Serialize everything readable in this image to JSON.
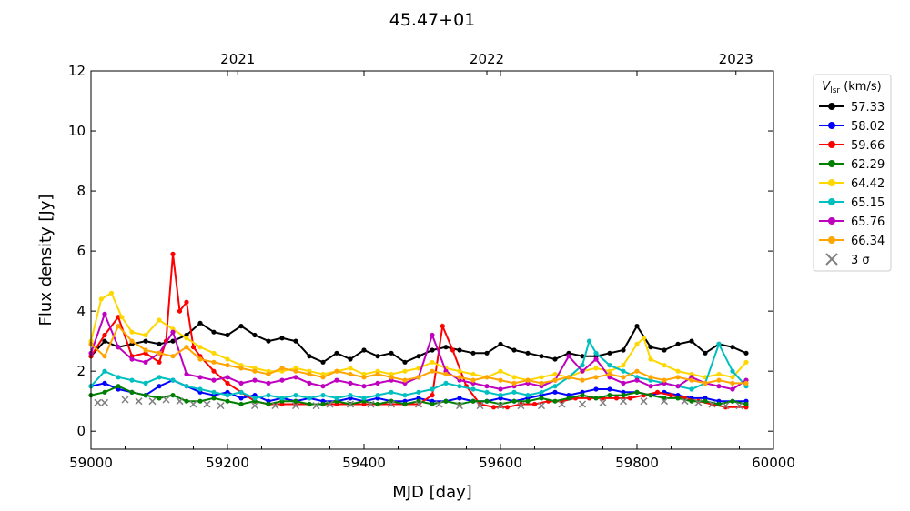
{
  "chart_data": {
    "type": "line",
    "title": "45.47+01",
    "xlabel": "MJD [day]",
    "ylabel": "Flux density [Jy]",
    "xlim": [
      59000,
      60000
    ],
    "ylim": [
      -0.6,
      12
    ],
    "xticks": [
      59000,
      59200,
      59400,
      59600,
      59800,
      60000
    ],
    "yticks": [
      0,
      2,
      4,
      6,
      8,
      10,
      12
    ],
    "top_axis": [
      {
        "label": "2021",
        "x": 59215
      },
      {
        "label": "2022",
        "x": 59580
      },
      {
        "label": "2023",
        "x": 59945
      }
    ],
    "legend": {
      "title_main": "V",
      "title_sub": "lsr",
      "title_unit": " (km/s)",
      "placement": "outside-right",
      "entries": [
        "57.33",
        "58.02",
        "59.66",
        "62.29",
        "64.42",
        "65.15",
        "65.76",
        "66.34"
      ],
      "sigma_label": "3 σ"
    },
    "series": [
      {
        "name": "57.33",
        "color": "#000000",
        "x": [
          59000,
          59020,
          59040,
          59060,
          59080,
          59100,
          59120,
          59140,
          59160,
          59180,
          59200,
          59220,
          59240,
          59260,
          59280,
          59300,
          59320,
          59340,
          59360,
          59380,
          59400,
          59420,
          59440,
          59460,
          59480,
          59500,
          59520,
          59540,
          59560,
          59580,
          59600,
          59620,
          59640,
          59660,
          59680,
          59700,
          59720,
          59740,
          59760,
          59780,
          59800,
          59820,
          59840,
          59860,
          59880,
          59900,
          59920,
          59940,
          59960
        ],
        "y": [
          2.5,
          3.0,
          2.8,
          2.9,
          3.0,
          2.9,
          3.0,
          3.2,
          3.6,
          3.3,
          3.2,
          3.5,
          3.2,
          3.0,
          3.1,
          3.0,
          2.5,
          2.3,
          2.6,
          2.4,
          2.7,
          2.5,
          2.6,
          2.3,
          2.5,
          2.7,
          2.8,
          2.7,
          2.6,
          2.6,
          2.9,
          2.7,
          2.6,
          2.5,
          2.4,
          2.6,
          2.5,
          2.5,
          2.6,
          2.7,
          3.5,
          2.8,
          2.7,
          2.9,
          3.0,
          2.6,
          2.9,
          2.8,
          2.6
        ]
      },
      {
        "name": "58.02",
        "color": "#0000ff",
        "x": [
          59000,
          59020,
          59040,
          59060,
          59080,
          59100,
          59120,
          59140,
          59160,
          59180,
          59200,
          59220,
          59240,
          59260,
          59280,
          59300,
          59320,
          59340,
          59360,
          59380,
          59400,
          59420,
          59440,
          59460,
          59480,
          59500,
          59520,
          59540,
          59560,
          59580,
          59600,
          59620,
          59640,
          59660,
          59680,
          59700,
          59720,
          59740,
          59760,
          59780,
          59800,
          59820,
          59840,
          59860,
          59880,
          59900,
          59920,
          59940,
          59960
        ],
        "y": [
          1.5,
          1.6,
          1.4,
          1.3,
          1.2,
          1.5,
          1.7,
          1.5,
          1.3,
          1.2,
          1.3,
          1.1,
          1.2,
          1.0,
          1.1,
          1.0,
          1.1,
          1.0,
          1.0,
          1.1,
          1.0,
          1.1,
          1.0,
          1.0,
          1.1,
          1.0,
          1.0,
          1.1,
          1.0,
          1.0,
          1.1,
          1.0,
          1.1,
          1.2,
          1.3,
          1.2,
          1.3,
          1.4,
          1.4,
          1.3,
          1.3,
          1.2,
          1.3,
          1.2,
          1.1,
          1.1,
          1.0,
          1.0,
          1.0
        ]
      },
      {
        "name": "59.66",
        "color": "#ff0000",
        "x": [
          59000,
          59020,
          59040,
          59060,
          59080,
          59100,
          59110,
          59120,
          59130,
          59140,
          59150,
          59160,
          59180,
          59200,
          59220,
          59240,
          59260,
          59280,
          59300,
          59320,
          59340,
          59360,
          59380,
          59400,
          59420,
          59440,
          59460,
          59480,
          59500,
          59515,
          59530,
          59550,
          59570,
          59590,
          59610,
          59630,
          59650,
          59670,
          59690,
          59710,
          59730,
          59750,
          59770,
          59790,
          59810,
          59830,
          59850,
          59870,
          59890,
          59910,
          59930,
          59960
        ],
        "y": [
          2.5,
          3.2,
          3.8,
          2.5,
          2.6,
          2.3,
          3.0,
          5.9,
          4.0,
          4.3,
          2.8,
          2.5,
          2.0,
          1.6,
          1.3,
          1.0,
          0.9,
          0.9,
          0.9,
          0.9,
          0.9,
          0.9,
          0.9,
          0.9,
          0.9,
          0.9,
          0.9,
          0.9,
          1.2,
          3.5,
          2.7,
          1.5,
          0.9,
          0.8,
          0.8,
          0.9,
          0.9,
          1.0,
          1.0,
          1.1,
          1.1,
          1.1,
          1.1,
          1.1,
          1.2,
          1.3,
          1.2,
          1.1,
          1.0,
          0.9,
          0.8,
          0.8
        ]
      },
      {
        "name": "62.29",
        "color": "#008000",
        "x": [
          59000,
          59020,
          59040,
          59060,
          59080,
          59100,
          59120,
          59140,
          59160,
          59180,
          59200,
          59220,
          59240,
          59260,
          59280,
          59300,
          59320,
          59340,
          59360,
          59380,
          59400,
          59420,
          59440,
          59460,
          59480,
          59500,
          59520,
          59540,
          59560,
          59580,
          59600,
          59620,
          59640,
          59660,
          59680,
          59700,
          59720,
          59740,
          59760,
          59780,
          59800,
          59820,
          59840,
          59860,
          59880,
          59900,
          59920,
          59940,
          59960
        ],
        "y": [
          1.2,
          1.3,
          1.5,
          1.3,
          1.2,
          1.1,
          1.2,
          1.0,
          1.0,
          1.1,
          1.0,
          0.9,
          1.0,
          0.9,
          1.0,
          1.0,
          0.9,
          0.9,
          1.0,
          0.9,
          1.0,
          0.9,
          1.0,
          0.9,
          1.0,
          0.9,
          1.0,
          0.9,
          1.0,
          1.0,
          0.9,
          1.0,
          1.0,
          1.1,
          1.0,
          1.1,
          1.2,
          1.1,
          1.2,
          1.2,
          1.3,
          1.2,
          1.1,
          1.1,
          1.0,
          1.0,
          0.9,
          1.0,
          0.9
        ]
      },
      {
        "name": "64.42",
        "color": "#ffd700",
        "x": [
          59000,
          59015,
          59030,
          59045,
          59060,
          59080,
          59100,
          59120,
          59140,
          59160,
          59180,
          59200,
          59220,
          59240,
          59260,
          59280,
          59300,
          59320,
          59340,
          59360,
          59380,
          59400,
          59420,
          59440,
          59460,
          59480,
          59500,
          59520,
          59540,
          59560,
          59580,
          59600,
          59620,
          59640,
          59660,
          59680,
          59700,
          59720,
          59740,
          59760,
          59780,
          59800,
          59810,
          59820,
          59840,
          59860,
          59880,
          59900,
          59920,
          59940,
          59960
        ],
        "y": [
          3.0,
          4.4,
          4.6,
          3.8,
          3.3,
          3.2,
          3.7,
          3.4,
          3.1,
          2.8,
          2.6,
          2.4,
          2.2,
          2.1,
          2.0,
          2.0,
          2.1,
          2.0,
          1.9,
          2.0,
          2.1,
          1.9,
          2.0,
          1.9,
          2.0,
          2.1,
          2.3,
          2.1,
          2.0,
          1.9,
          1.8,
          2.0,
          1.8,
          1.7,
          1.8,
          1.9,
          1.8,
          2.0,
          2.1,
          2.0,
          2.2,
          2.9,
          3.1,
          2.4,
          2.2,
          2.0,
          1.9,
          1.8,
          1.9,
          1.8,
          2.3
        ]
      },
      {
        "name": "65.15",
        "color": "#00bfbf",
        "x": [
          59000,
          59020,
          59040,
          59060,
          59080,
          59100,
          59120,
          59140,
          59160,
          59180,
          59200,
          59220,
          59240,
          59260,
          59280,
          59300,
          59320,
          59340,
          59360,
          59380,
          59400,
          59420,
          59440,
          59460,
          59480,
          59500,
          59520,
          59540,
          59560,
          59580,
          59600,
          59620,
          59640,
          59660,
          59680,
          59700,
          59720,
          59730,
          59740,
          59760,
          59780,
          59800,
          59820,
          59840,
          59860,
          59880,
          59900,
          59920,
          59940,
          59960
        ],
        "y": [
          1.5,
          2.0,
          1.8,
          1.7,
          1.6,
          1.8,
          1.7,
          1.5,
          1.4,
          1.3,
          1.2,
          1.3,
          1.1,
          1.2,
          1.1,
          1.2,
          1.1,
          1.2,
          1.1,
          1.2,
          1.1,
          1.2,
          1.3,
          1.2,
          1.3,
          1.4,
          1.6,
          1.5,
          1.4,
          1.3,
          1.2,
          1.3,
          1.2,
          1.3,
          1.5,
          1.8,
          2.2,
          3.0,
          2.6,
          2.2,
          2.0,
          1.8,
          1.7,
          1.6,
          1.5,
          1.4,
          1.6,
          2.9,
          2.0,
          1.5
        ]
      },
      {
        "name": "65.76",
        "color": "#bf00bf",
        "x": [
          59000,
          59020,
          59040,
          59060,
          59080,
          59100,
          59120,
          59140,
          59160,
          59180,
          59200,
          59220,
          59240,
          59260,
          59280,
          59300,
          59320,
          59340,
          59360,
          59380,
          59400,
          59420,
          59440,
          59460,
          59480,
          59500,
          59520,
          59540,
          59560,
          59580,
          59600,
          59620,
          59640,
          59660,
          59680,
          59700,
          59720,
          59740,
          59760,
          59780,
          59800,
          59820,
          59840,
          59860,
          59880,
          59900,
          59920,
          59940,
          59960
        ],
        "y": [
          2.6,
          3.9,
          2.8,
          2.4,
          2.3,
          2.6,
          3.3,
          1.9,
          1.8,
          1.7,
          1.8,
          1.6,
          1.7,
          1.6,
          1.7,
          1.8,
          1.6,
          1.5,
          1.7,
          1.6,
          1.5,
          1.6,
          1.7,
          1.6,
          1.8,
          3.2,
          2.0,
          1.7,
          1.6,
          1.5,
          1.4,
          1.5,
          1.6,
          1.5,
          1.7,
          2.5,
          2.0,
          2.4,
          1.8,
          1.6,
          1.7,
          1.5,
          1.6,
          1.5,
          1.8,
          1.6,
          1.5,
          1.4,
          1.7
        ]
      },
      {
        "name": "66.34",
        "color": "#ffa500",
        "x": [
          59000,
          59020,
          59040,
          59060,
          59080,
          59100,
          59120,
          59140,
          59160,
          59180,
          59200,
          59220,
          59240,
          59260,
          59280,
          59300,
          59320,
          59340,
          59360,
          59380,
          59400,
          59420,
          59440,
          59460,
          59480,
          59500,
          59520,
          59540,
          59560,
          59580,
          59600,
          59620,
          59640,
          59660,
          59680,
          59700,
          59720,
          59740,
          59760,
          59780,
          59800,
          59820,
          59840,
          59860,
          59880,
          59900,
          59920,
          59940,
          59960
        ],
        "y": [
          2.9,
          2.5,
          3.5,
          3.0,
          2.7,
          2.6,
          2.5,
          2.8,
          2.4,
          2.3,
          2.2,
          2.1,
          2.0,
          1.9,
          2.1,
          2.0,
          1.9,
          1.8,
          2.0,
          1.9,
          1.8,
          1.9,
          1.8,
          1.7,
          1.8,
          2.0,
          1.9,
          1.8,
          1.7,
          1.8,
          1.7,
          1.6,
          1.7,
          1.6,
          1.7,
          1.8,
          1.7,
          1.8,
          1.9,
          1.8,
          2.0,
          1.8,
          1.7,
          1.8,
          1.7,
          1.6,
          1.7,
          1.6,
          1.6
        ]
      }
    ],
    "sigma3": {
      "name": "3 σ",
      "color": "#808080",
      "x": [
        59010,
        59020,
        59050,
        59070,
        59090,
        59110,
        59130,
        59150,
        59170,
        59190,
        59240,
        59270,
        59300,
        59330,
        59350,
        59380,
        59410,
        59440,
        59480,
        59510,
        59540,
        59570,
        59600,
        59630,
        59660,
        59690,
        59720,
        59750,
        59780,
        59810,
        59840,
        59870,
        59890,
        59910,
        59930,
        59950
      ],
      "y": [
        0.95,
        0.95,
        1.05,
        1.0,
        1.0,
        1.05,
        1.0,
        0.9,
        0.9,
        0.85,
        0.85,
        0.85,
        0.85,
        0.85,
        0.9,
        0.9,
        0.9,
        0.9,
        0.9,
        0.9,
        0.85,
        0.85,
        0.85,
        0.85,
        0.85,
        0.9,
        0.9,
        0.95,
        1.0,
        1.0,
        1.0,
        1.0,
        0.95,
        0.9,
        0.85,
        0.85
      ]
    }
  }
}
